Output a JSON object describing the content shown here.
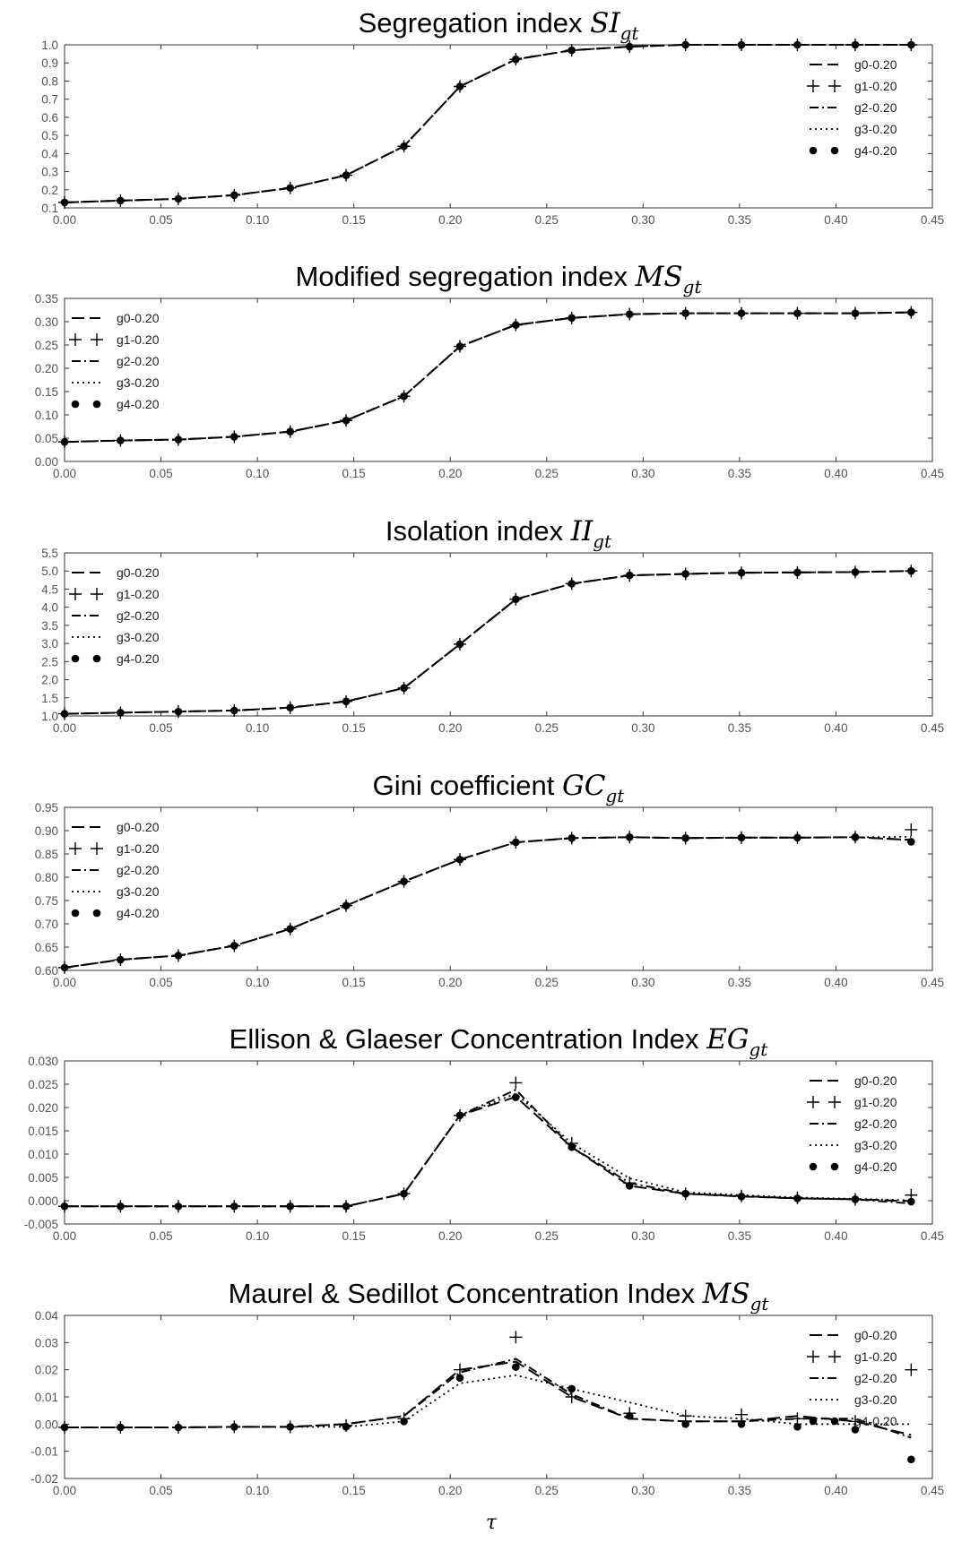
{
  "chart_data": [
    {
      "type": "line",
      "title": "Segregation index SI",
      "title_subscript": "gt",
      "xlabel": "",
      "ylabel": "",
      "xlim": [
        0.0,
        0.45
      ],
      "ylim": [
        0.1,
        1.0
      ],
      "xticks": [
        "0.00",
        "0.05",
        "0.10",
        "0.15",
        "0.20",
        "0.25",
        "0.30",
        "0.35",
        "0.40",
        "0.45"
      ],
      "yticks": [
        "0.1",
        "0.2",
        "0.3",
        "0.4",
        "0.5",
        "0.6",
        "0.7",
        "0.8",
        "0.9",
        "1.0"
      ],
      "grid": false,
      "legend_position": "upper-right",
      "x": [
        0.0,
        0.029,
        0.059,
        0.088,
        0.117,
        0.146,
        0.176,
        0.205,
        0.234,
        0.263,
        0.293,
        0.322,
        0.351,
        0.38,
        0.41,
        0.439
      ],
      "series": [
        {
          "name": "g0-0.20",
          "style": "dash",
          "values": [
            0.13,
            0.14,
            0.15,
            0.17,
            0.21,
            0.28,
            0.44,
            0.77,
            0.92,
            0.97,
            0.99,
            1.0,
            1.0,
            1.0,
            1.0,
            1.0
          ]
        },
        {
          "name": "g1-0.20",
          "style": "plus",
          "values": [
            0.13,
            0.14,
            0.15,
            0.17,
            0.21,
            0.28,
            0.44,
            0.77,
            0.92,
            0.97,
            0.99,
            1.0,
            1.0,
            1.0,
            1.0,
            1.0
          ]
        },
        {
          "name": "g2-0.20",
          "style": "dashdot",
          "values": [
            0.13,
            0.14,
            0.15,
            0.17,
            0.21,
            0.28,
            0.44,
            0.77,
            0.92,
            0.97,
            0.99,
            1.0,
            1.0,
            1.0,
            1.0,
            1.0
          ]
        },
        {
          "name": "g3-0.20",
          "style": "dot",
          "values": [
            0.13,
            0.14,
            0.15,
            0.17,
            0.21,
            0.28,
            0.44,
            0.77,
            0.92,
            0.97,
            0.99,
            1.0,
            1.0,
            1.0,
            1.0,
            1.0
          ]
        },
        {
          "name": "g4-0.20",
          "style": "circle",
          "values": [
            0.13,
            0.14,
            0.15,
            0.17,
            0.21,
            0.28,
            0.44,
            0.77,
            0.92,
            0.97,
            0.99,
            1.0,
            1.0,
            1.0,
            1.0,
            1.0
          ]
        }
      ]
    },
    {
      "type": "line",
      "title": "Modified segregation index MS",
      "title_subscript": "gt",
      "xlabel": "",
      "ylabel": "",
      "xlim": [
        0.0,
        0.45
      ],
      "ylim": [
        0.0,
        0.35
      ],
      "xticks": [
        "0.00",
        "0.05",
        "0.10",
        "0.15",
        "0.20",
        "0.25",
        "0.30",
        "0.35",
        "0.40",
        "0.45"
      ],
      "yticks": [
        "0.00",
        "0.05",
        "0.10",
        "0.15",
        "0.20",
        "0.25",
        "0.30",
        "0.35"
      ],
      "grid": false,
      "legend_position": "upper-left",
      "x": [
        0.0,
        0.029,
        0.059,
        0.088,
        0.117,
        0.146,
        0.176,
        0.205,
        0.234,
        0.263,
        0.293,
        0.322,
        0.351,
        0.38,
        0.41,
        0.439
      ],
      "series": [
        {
          "name": "g0-0.20",
          "style": "dash",
          "values": [
            0.042,
            0.045,
            0.047,
            0.053,
            0.064,
            0.088,
            0.14,
            0.247,
            0.293,
            0.308,
            0.316,
            0.318,
            0.318,
            0.318,
            0.318,
            0.32
          ]
        },
        {
          "name": "g1-0.20",
          "style": "plus",
          "values": [
            0.042,
            0.045,
            0.047,
            0.053,
            0.064,
            0.088,
            0.14,
            0.247,
            0.293,
            0.308,
            0.316,
            0.318,
            0.318,
            0.318,
            0.318,
            0.32
          ]
        },
        {
          "name": "g2-0.20",
          "style": "dashdot",
          "values": [
            0.042,
            0.045,
            0.047,
            0.053,
            0.064,
            0.088,
            0.14,
            0.247,
            0.293,
            0.308,
            0.316,
            0.318,
            0.318,
            0.318,
            0.318,
            0.32
          ]
        },
        {
          "name": "g3-0.20",
          "style": "dot",
          "values": [
            0.042,
            0.045,
            0.047,
            0.053,
            0.064,
            0.088,
            0.14,
            0.247,
            0.293,
            0.308,
            0.316,
            0.318,
            0.318,
            0.318,
            0.318,
            0.32
          ]
        },
        {
          "name": "g4-0.20",
          "style": "circle",
          "values": [
            0.042,
            0.045,
            0.047,
            0.053,
            0.064,
            0.088,
            0.14,
            0.247,
            0.293,
            0.308,
            0.316,
            0.318,
            0.318,
            0.318,
            0.318,
            0.32
          ]
        }
      ]
    },
    {
      "type": "line",
      "title": "Isolation index II",
      "title_subscript": "gt",
      "xlabel": "",
      "ylabel": "",
      "xlim": [
        0.0,
        0.45
      ],
      "ylim": [
        1.0,
        5.5
      ],
      "xticks": [
        "0.00",
        "0.05",
        "0.10",
        "0.15",
        "0.20",
        "0.25",
        "0.30",
        "0.35",
        "0.40",
        "0.45"
      ],
      "yticks": [
        "1.0",
        "1.5",
        "2.0",
        "2.5",
        "3.0",
        "3.5",
        "4.0",
        "4.5",
        "5.0",
        "5.5"
      ],
      "grid": false,
      "legend_position": "upper-left",
      "x": [
        0.0,
        0.029,
        0.059,
        0.088,
        0.117,
        0.146,
        0.176,
        0.205,
        0.234,
        0.263,
        0.293,
        0.322,
        0.351,
        0.38,
        0.41,
        0.439
      ],
      "series": [
        {
          "name": "g0-0.20",
          "style": "dash",
          "values": [
            1.06,
            1.09,
            1.12,
            1.15,
            1.23,
            1.4,
            1.77,
            2.98,
            4.22,
            4.65,
            4.88,
            4.92,
            4.95,
            4.96,
            4.97,
            5.0
          ]
        },
        {
          "name": "g1-0.20",
          "style": "plus",
          "values": [
            1.06,
            1.09,
            1.12,
            1.15,
            1.23,
            1.4,
            1.77,
            2.98,
            4.22,
            4.65,
            4.88,
            4.92,
            4.95,
            4.96,
            4.97,
            5.0
          ]
        },
        {
          "name": "g2-0.20",
          "style": "dashdot",
          "values": [
            1.06,
            1.09,
            1.12,
            1.15,
            1.23,
            1.4,
            1.77,
            2.98,
            4.22,
            4.65,
            4.88,
            4.92,
            4.95,
            4.96,
            4.97,
            5.0
          ]
        },
        {
          "name": "g3-0.20",
          "style": "dot",
          "values": [
            1.06,
            1.09,
            1.12,
            1.15,
            1.23,
            1.4,
            1.77,
            2.98,
            4.22,
            4.65,
            4.88,
            4.92,
            4.95,
            4.96,
            4.97,
            5.0
          ]
        },
        {
          "name": "g4-0.20",
          "style": "circle",
          "values": [
            1.06,
            1.09,
            1.12,
            1.15,
            1.23,
            1.4,
            1.77,
            2.98,
            4.22,
            4.65,
            4.88,
            4.92,
            4.95,
            4.96,
            4.97,
            5.0
          ]
        }
      ]
    },
    {
      "type": "line",
      "title": "Gini coefficient GC",
      "title_subscript": "gt",
      "xlabel": "",
      "ylabel": "",
      "xlim": [
        0.0,
        0.45
      ],
      "ylim": [
        0.6,
        0.95
      ],
      "xticks": [
        "0.00",
        "0.05",
        "0.10",
        "0.15",
        "0.20",
        "0.25",
        "0.30",
        "0.35",
        "0.40",
        "0.45"
      ],
      "yticks": [
        "0.60",
        "0.65",
        "0.70",
        "0.75",
        "0.80",
        "0.85",
        "0.90",
        "0.95"
      ],
      "grid": false,
      "legend_position": "upper-left",
      "x": [
        0.0,
        0.029,
        0.059,
        0.088,
        0.117,
        0.146,
        0.176,
        0.205,
        0.234,
        0.263,
        0.293,
        0.322,
        0.351,
        0.38,
        0.41,
        0.439
      ],
      "series": [
        {
          "name": "g0-0.20",
          "style": "dash",
          "values": [
            0.606,
            0.623,
            0.632,
            0.653,
            0.689,
            0.739,
            0.791,
            0.838,
            0.875,
            0.884,
            0.886,
            0.884,
            0.885,
            0.885,
            0.886,
            0.88
          ]
        },
        {
          "name": "g1-0.20",
          "style": "plus",
          "values": [
            0.606,
            0.623,
            0.632,
            0.653,
            0.689,
            0.739,
            0.791,
            0.838,
            0.875,
            0.884,
            0.886,
            0.884,
            0.885,
            0.885,
            0.886,
            0.902
          ]
        },
        {
          "name": "g2-0.20",
          "style": "dashdot",
          "values": [
            0.606,
            0.623,
            0.632,
            0.653,
            0.689,
            0.739,
            0.791,
            0.838,
            0.875,
            0.884,
            0.886,
            0.884,
            0.885,
            0.885,
            0.886,
            0.88
          ]
        },
        {
          "name": "g3-0.20",
          "style": "dot",
          "values": [
            0.606,
            0.623,
            0.632,
            0.653,
            0.689,
            0.739,
            0.791,
            0.838,
            0.875,
            0.884,
            0.886,
            0.884,
            0.885,
            0.885,
            0.886,
            0.887
          ]
        },
        {
          "name": "g4-0.20",
          "style": "circle",
          "values": [
            0.606,
            0.623,
            0.632,
            0.653,
            0.689,
            0.739,
            0.791,
            0.838,
            0.875,
            0.884,
            0.886,
            0.884,
            0.885,
            0.885,
            0.886,
            0.876
          ]
        }
      ]
    },
    {
      "type": "line",
      "title": "Ellison & Glaeser Concentration Index EG",
      "title_subscript": "gt",
      "xlabel": "",
      "ylabel": "",
      "xlim": [
        0.0,
        0.45
      ],
      "ylim": [
        -0.005,
        0.03
      ],
      "xticks": [
        "0.00",
        "0.05",
        "0.10",
        "0.15",
        "0.20",
        "0.25",
        "0.30",
        "0.35",
        "0.40",
        "0.45"
      ],
      "yticks": [
        "-0.005",
        "0.000",
        "0.005",
        "0.010",
        "0.015",
        "0.020",
        "0.025",
        "0.030"
      ],
      "grid": false,
      "legend_position": "upper-right",
      "x": [
        0.0,
        0.029,
        0.059,
        0.088,
        0.117,
        0.146,
        0.176,
        0.205,
        0.234,
        0.263,
        0.293,
        0.322,
        0.351,
        0.38,
        0.41,
        0.439
      ],
      "series": [
        {
          "name": "g0-0.20",
          "style": "dash",
          "values": [
            -0.0012,
            -0.0012,
            -0.0012,
            -0.0012,
            -0.0012,
            -0.0012,
            0.0015,
            0.0183,
            0.0223,
            0.0115,
            0.0032,
            0.0015,
            0.0009,
            0.0005,
            0.0003,
            -0.0001
          ]
        },
        {
          "name": "g1-0.20",
          "style": "plus",
          "values": [
            -0.0012,
            -0.0012,
            -0.0012,
            -0.0012,
            -0.0012,
            -0.0012,
            0.0015,
            0.0183,
            0.0253,
            0.0123,
            0.0038,
            0.0015,
            0.001,
            0.0006,
            0.0003,
            0.0012
          ]
        },
        {
          "name": "g2-0.20",
          "style": "dashdot",
          "values": [
            -0.0012,
            -0.0012,
            -0.0012,
            -0.0012,
            -0.0012,
            -0.0012,
            0.0015,
            0.0183,
            0.0238,
            0.0115,
            0.0038,
            0.0015,
            0.001,
            0.0005,
            0.0003,
            -0.0006
          ]
        },
        {
          "name": "g3-0.20",
          "style": "dot",
          "values": [
            -0.0012,
            -0.0012,
            -0.0012,
            -0.0012,
            -0.0012,
            -0.0012,
            0.0015,
            0.0183,
            0.023,
            0.0123,
            0.0048,
            0.0018,
            0.0012,
            0.0007,
            0.0004,
            0.0001
          ]
        },
        {
          "name": "g4-0.20",
          "style": "circle",
          "values": [
            -0.0012,
            -0.0012,
            -0.0012,
            -0.0012,
            -0.0012,
            -0.0012,
            0.0015,
            0.0183,
            0.0222,
            0.0115,
            0.0032,
            0.0015,
            0.0009,
            0.0005,
            0.0003,
            -0.0002
          ]
        }
      ]
    },
    {
      "type": "line",
      "title": "Maurel & Sedillot Concentration Index MS",
      "title_subscript": "gt",
      "xlabel": "τ",
      "ylabel": "",
      "xlim": [
        0.0,
        0.45
      ],
      "ylim": [
        -0.02,
        0.04
      ],
      "xticks": [
        "0.00",
        "0.05",
        "0.10",
        "0.15",
        "0.20",
        "0.25",
        "0.30",
        "0.35",
        "0.40",
        "0.45"
      ],
      "yticks": [
        "-0.02",
        "-0.01",
        "0.00",
        "0.01",
        "0.02",
        "0.03",
        "0.04"
      ],
      "grid": false,
      "legend_position": "upper-right",
      "x": [
        0.0,
        0.029,
        0.059,
        0.088,
        0.117,
        0.146,
        0.176,
        0.205,
        0.234,
        0.263,
        0.293,
        0.322,
        0.351,
        0.38,
        0.41,
        0.439
      ],
      "series": [
        {
          "name": "g0-0.20",
          "style": "dash",
          "values": [
            -0.0012,
            -0.0012,
            -0.0012,
            -0.001,
            -0.001,
            0.0,
            0.003,
            0.02,
            0.023,
            0.01,
            0.002,
            0.001,
            0.001,
            0.003,
            0.001,
            -0.004
          ]
        },
        {
          "name": "g1-0.20",
          "style": "plus",
          "values": [
            -0.0012,
            -0.0012,
            -0.0012,
            -0.001,
            -0.001,
            -0.0005,
            0.002,
            0.02,
            0.032,
            0.01,
            0.004,
            0.003,
            0.0035,
            0.002,
            0.001,
            0.02
          ]
        },
        {
          "name": "g2-0.20",
          "style": "dashdot",
          "values": [
            -0.0012,
            -0.0012,
            -0.0012,
            -0.001,
            -0.001,
            0.0,
            0.003,
            0.019,
            0.024,
            0.011,
            0.002,
            0.001,
            0.001,
            0.002,
            0.002,
            -0.005
          ]
        },
        {
          "name": "g3-0.20",
          "style": "dot",
          "values": [
            -0.0012,
            -0.0012,
            -0.0012,
            -0.001,
            -0.001,
            -0.001,
            0.001,
            0.015,
            0.018,
            0.013,
            0.008,
            0.003,
            0.002,
            0.0,
            0.0,
            0.0
          ]
        },
        {
          "name": "g4-0.20",
          "style": "circle",
          "values": [
            -0.0012,
            -0.0012,
            -0.0012,
            -0.001,
            -0.001,
            -0.001,
            0.001,
            0.017,
            0.021,
            0.013,
            0.003,
            0.0,
            0.0,
            -0.001,
            -0.002,
            -0.013
          ]
        }
      ]
    }
  ]
}
